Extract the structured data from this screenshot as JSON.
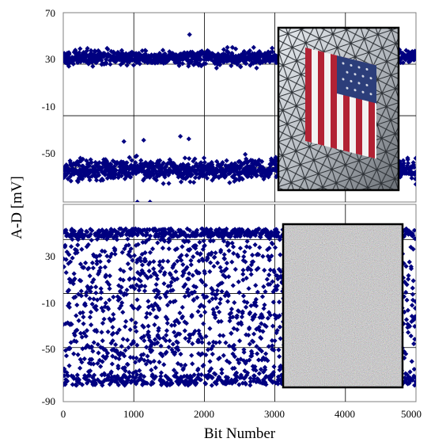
{
  "chart_data": [
    {
      "type": "scatter",
      "panel": "top",
      "xlabel": "Bit Number",
      "ylabel": "A-D [mV]",
      "xlim": [
        0,
        5000
      ],
      "ylim": [
        -90,
        70
      ],
      "visible_y_range": [
        -77,
        70
      ],
      "yticks": [
        70,
        30,
        -10,
        -50
      ],
      "xticks": [
        0,
        1000,
        2000,
        3000,
        4000,
        5000
      ],
      "grid": true,
      "marker": "diamond",
      "marker_color": "#000080",
      "n_points": 5000,
      "series": [
        {
          "bands": [
            {
              "center": 35,
              "spread": 5
            },
            {
              "center": -52,
              "spread": 7
            }
          ],
          "noted_outliers": [
            {
              "x": 1050,
              "y": -77
            },
            {
              "x": 1230,
              "y": -77
            },
            {
              "x": 1790,
              "y": 53
            },
            {
              "x": 1660,
              "y": -26
            },
            {
              "x": 1780,
              "y": -28
            },
            {
              "x": 860,
              "y": -30
            },
            {
              "x": 1140,
              "y": -29
            },
            {
              "x": 2580,
              "y": -40
            },
            {
              "x": 3100,
              "y": -40
            }
          ]
        }
      ],
      "inset_image": {
        "kind": "photo",
        "subject": "american-flag-in-glass-atrium"
      }
    },
    {
      "type": "scatter",
      "panel": "bottom",
      "xlabel": "Bit Number",
      "ylabel": "A-D [mV]",
      "xlim": [
        0,
        5000
      ],
      "ylim": [
        -90,
        56
      ],
      "yticks": [
        30,
        -10,
        -50,
        -90
      ],
      "xticks": [
        0,
        1000,
        2000,
        3000,
        4000,
        5000
      ],
      "grid": true,
      "marker": "diamond",
      "marker_color": "#000080",
      "n_points": 5000,
      "series": [
        {
          "distribution": "scattered",
          "y_range": [
            -78,
            38
          ],
          "denser_near": [
            35,
            -75
          ]
        }
      ],
      "inset_image": {
        "kind": "noise",
        "subject": "random-color-noise"
      }
    }
  ],
  "labels": {
    "ylabel": "A-D [mV]",
    "xlabel": "Bit Number",
    "top_yticks": [
      "70",
      "30",
      "-10",
      "-50"
    ],
    "bottom_yticks": [
      "30",
      "-10",
      "-50",
      "-90"
    ],
    "xticks": [
      "0",
      "1000",
      "2000",
      "3000",
      "4000",
      "5000"
    ]
  }
}
